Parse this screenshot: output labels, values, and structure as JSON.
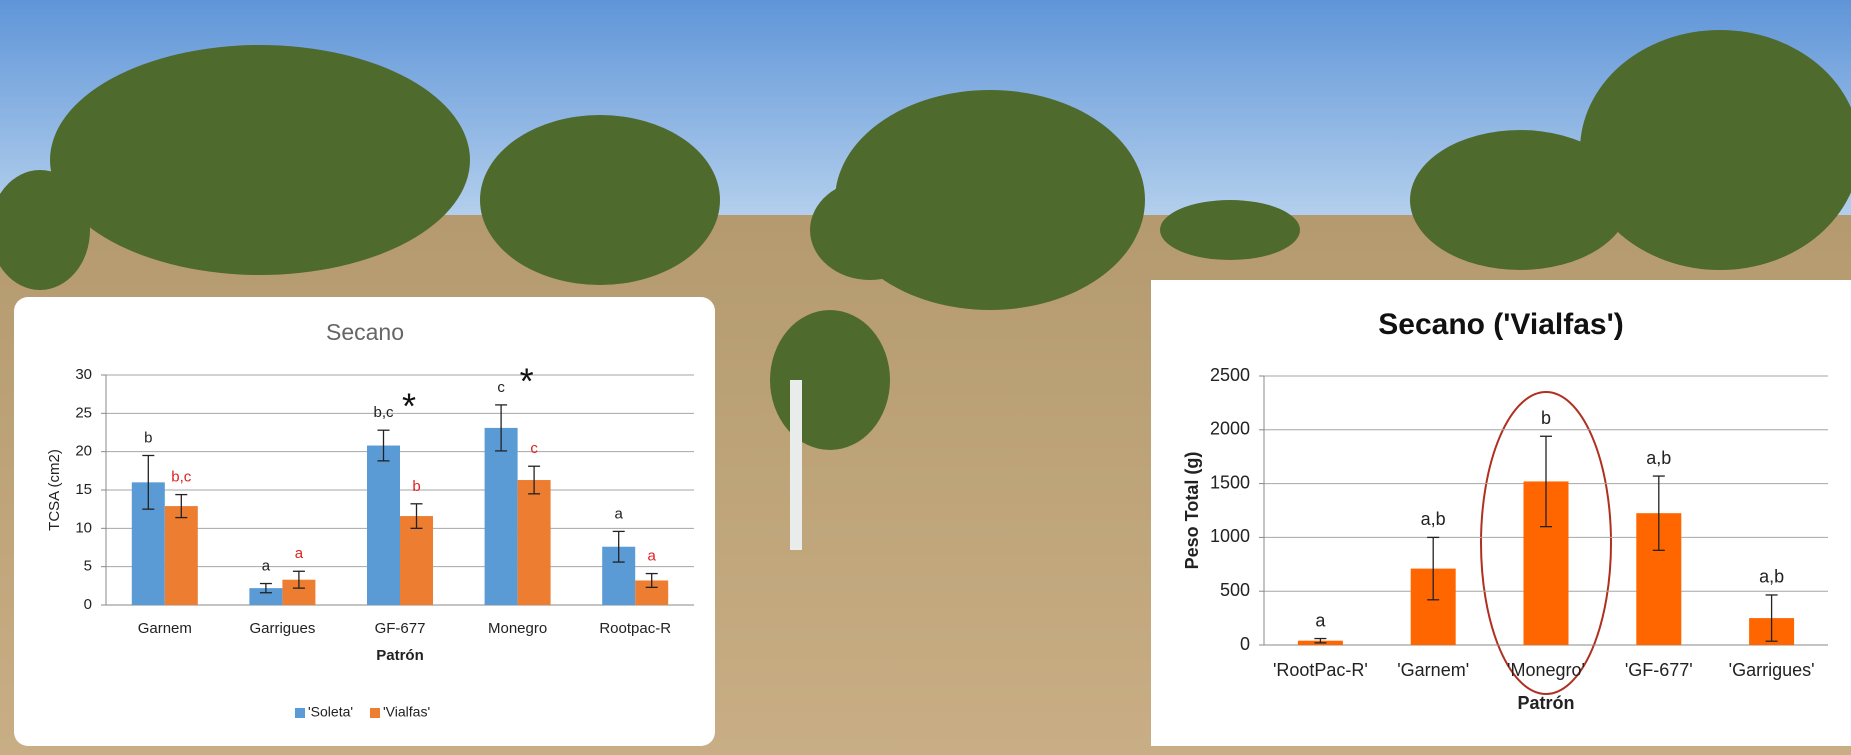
{
  "chart_data": [
    {
      "type": "bar",
      "title": "Secano",
      "y_label": "TCSA (cm2)",
      "x_label": "Patrón",
      "categories": [
        "Garnem",
        "Garrigues",
        "GF-677",
        "Monegro",
        "Rootpac-R"
      ],
      "series": [
        {
          "name": "'Soleta'",
          "color": "#5b9bd5",
          "letter_color": "#222222",
          "values": [
            16,
            2.2,
            20.8,
            23.1,
            7.6
          ],
          "errors": [
            3.5,
            0.6,
            2,
            3,
            2
          ],
          "letters": [
            "b",
            "a",
            "b,c",
            "c",
            "a"
          ]
        },
        {
          "name": "'Vialfas'",
          "color": "#ed7d31",
          "letter_color": "#e02020",
          "values": [
            12.9,
            3.3,
            11.6,
            16.3,
            3.2
          ],
          "errors": [
            1.5,
            1.1,
            1.6,
            1.8,
            0.9
          ],
          "letters": [
            "b,c",
            "a",
            "b",
            "c",
            "a"
          ]
        }
      ],
      "significance": [
        null,
        null,
        "*",
        "*",
        null
      ],
      "ylim": [
        0,
        30
      ],
      "yticks": [
        0,
        5,
        10,
        15,
        20,
        25,
        30
      ],
      "grid": true,
      "legend": "bottom"
    },
    {
      "type": "bar",
      "title": "Secano ('Vialfas')",
      "y_label": "Peso Total (g)",
      "x_label": "Patrón",
      "categories": [
        "'RootPac-R'",
        "'Garnem'",
        "'Monegro'",
        "'GF-677'",
        "'Garrigues'"
      ],
      "series": [
        {
          "color": "#ff6600",
          "letter_color": "#222222",
          "values": [
            40,
            710,
            1520,
            1225,
            250
          ],
          "errors": [
            20,
            290,
            420,
            345,
            215
          ],
          "letters": [
            "a",
            "a,b",
            "b",
            "a,b",
            "a,b"
          ]
        }
      ],
      "ylim": [
        0,
        2500
      ],
      "yticks": [
        0,
        500,
        1000,
        1500,
        2000,
        2500
      ],
      "grid": true
    }
  ]
}
